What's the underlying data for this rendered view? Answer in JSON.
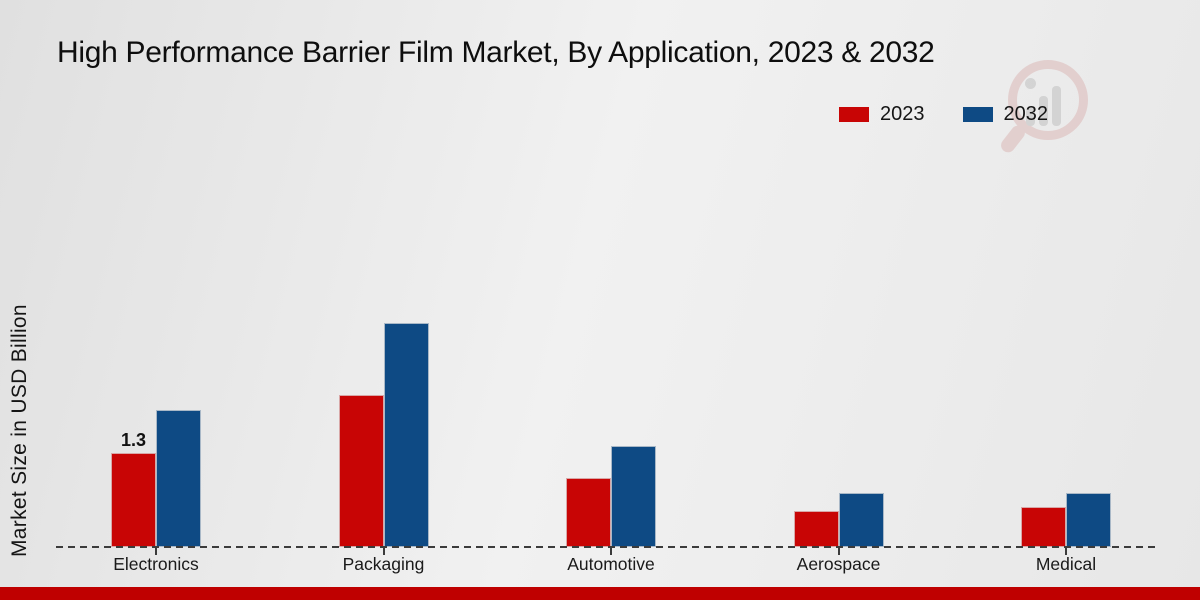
{
  "title": "High Performance Barrier Film Market, By Application, 2023 & 2032",
  "ylabel": "Market Size in USD Billion",
  "footer_color": "#bf0000",
  "background": {
    "base": "#ebebeb"
  },
  "legend": {
    "items": [
      {
        "label": "2023",
        "color": "#c80505"
      },
      {
        "label": "2032",
        "color": "#0e4a84"
      }
    ],
    "position": "top-right"
  },
  "chart_data": {
    "type": "bar",
    "categories": [
      "Electronics",
      "Packaging",
      "Automotive",
      "Aerospace",
      "Medical"
    ],
    "series": [
      {
        "name": "2023",
        "color": "#c80505",
        "values": [
          1.3,
          2.1,
          0.95,
          0.5,
          0.55
        ]
      },
      {
        "name": "2032",
        "color": "#0e4a84",
        "values": [
          1.9,
          3.1,
          1.4,
          0.75,
          0.75
        ]
      }
    ],
    "title": "High Performance Barrier Film Market, By Application, 2023 & 2032",
    "xlabel": "",
    "ylabel": "Market Size in USD Billion",
    "ylim": [
      0,
      3.5
    ],
    "grid": false,
    "axis_style": "dashed-baseline-only",
    "legend_position": "top-right",
    "data_labels": [
      {
        "category_index": 0,
        "series_index": 0,
        "text": "1.3"
      }
    ]
  }
}
